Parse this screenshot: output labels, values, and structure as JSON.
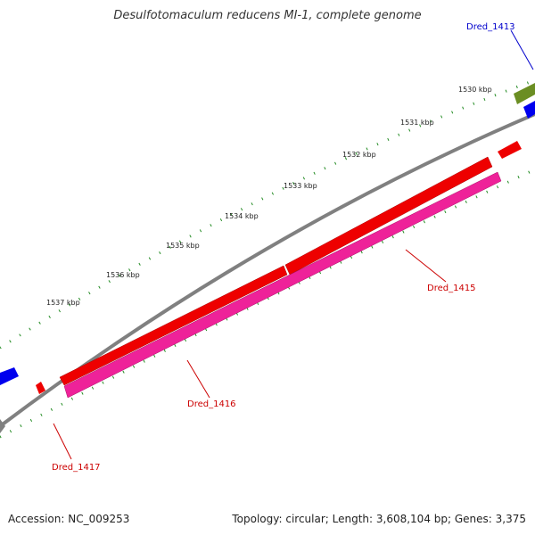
{
  "title": "Desulfotomaculum reducens MI-1, complete genome",
  "footer": {
    "accession": "Accession: NC_009253",
    "summary": "Topology: circular; Length: 3,608,104 bp; Genes: 3,375"
  },
  "ticks": [
    "1530 kbp",
    "1531 kbp",
    "1532 kbp",
    "1533 kbp",
    "1534 kbp",
    "1535 kbp",
    "1536 kbp",
    "1537 kbp"
  ],
  "genes": [
    {
      "label": "Dred_1413",
      "color": "#0000cc"
    },
    {
      "label": "Dred_1415",
      "color": "#cc0000"
    },
    {
      "label": "Dred_1416",
      "color": "#cc0000"
    },
    {
      "label": "Dred_1417",
      "color": "#cc0000"
    }
  ],
  "colors": {
    "backbone": "#808080",
    "forward_strand": "#ee0000",
    "reverse_strand": "#ee2299",
    "blue_feature": "#0000ee",
    "olive_feature": "#6b8e23",
    "tick_marks": "#228b22"
  }
}
